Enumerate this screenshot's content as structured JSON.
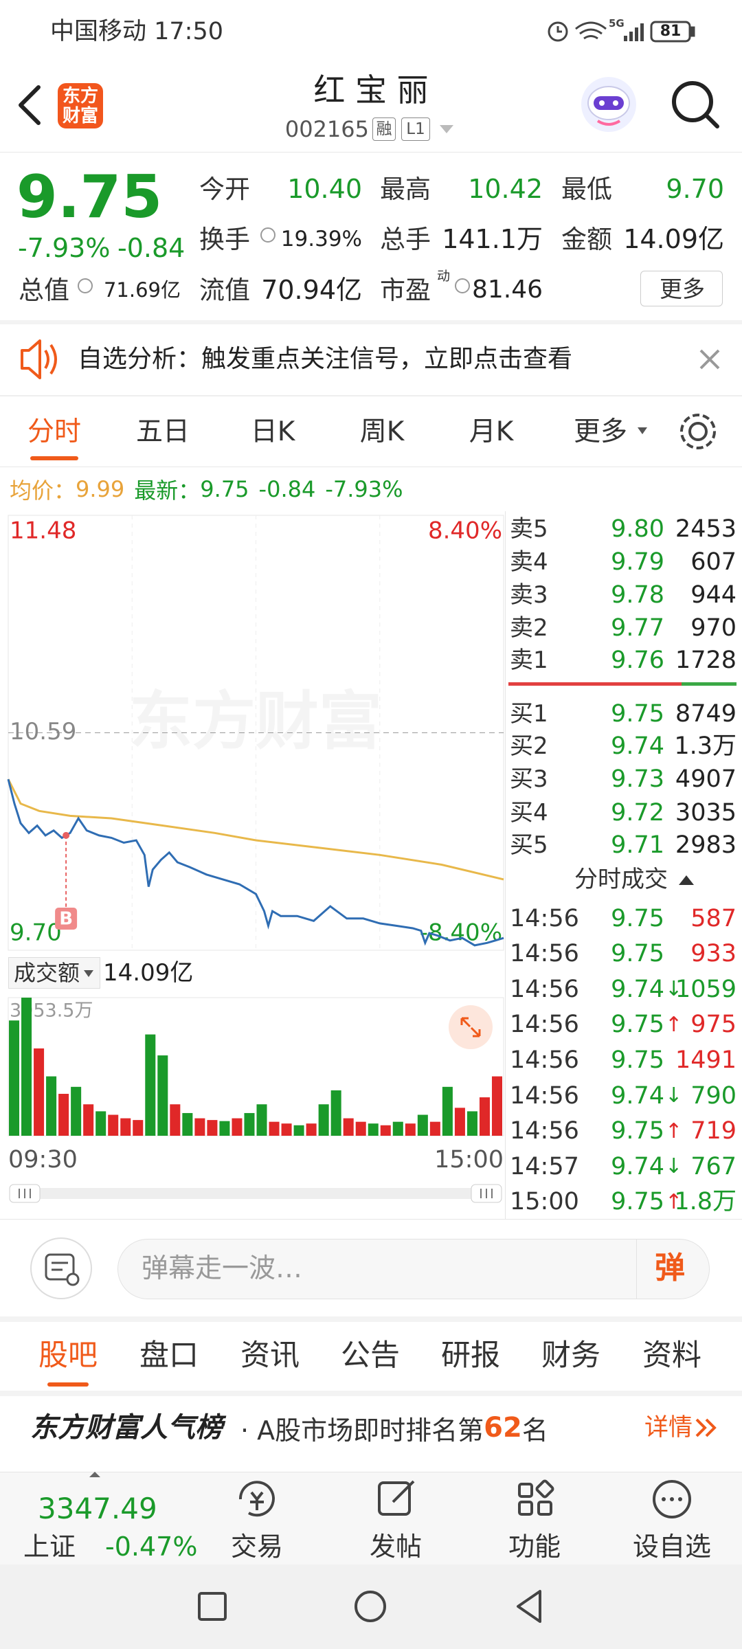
{
  "status_bar": {
    "carrier_time": "中国移动 17:50",
    "network": "5G",
    "battery": "81"
  },
  "header": {
    "logo": "东方财富",
    "title": "红 宝 丽",
    "code": "002165",
    "tags": [
      "融",
      "L1"
    ]
  },
  "quote": {
    "price": "9.75",
    "change_pct": "-7.93%",
    "change": "-0.84",
    "stats": [
      {
        "label": "今开",
        "value": "10.40"
      },
      {
        "label": "最高",
        "value": "10.42"
      },
      {
        "label": "最低",
        "value": "9.70"
      },
      {
        "label": "换手",
        "value": "19.39%"
      },
      {
        "label": "总手",
        "value": "141.1万"
      },
      {
        "label": "金额",
        "value": "14.09亿"
      },
      {
        "label": "总值",
        "value": "71.69亿"
      },
      {
        "label": "流值",
        "value": "70.94亿"
      },
      {
        "label": "市盈",
        "note": "动",
        "value": "81.46"
      }
    ],
    "more_button": "更多"
  },
  "notice": {
    "text": "自选分析：触发重点关注信号，立即点击查看"
  },
  "chart_tabs": [
    "分时",
    "五日",
    "日K",
    "周K",
    "月K",
    "更多"
  ],
  "summary": {
    "avg_label": "均价：",
    "avg": "9.99",
    "latest_label": "最新：",
    "latest": "9.75",
    "change": "-0.84",
    "change_pct": "-7.93%"
  },
  "chart_data": [
    {
      "type": "line",
      "watermark": "东方财富",
      "xlim": [
        0,
        240
      ],
      "xticks": [
        {
          "value": 0,
          "label": "09:30"
        },
        {
          "value": 240,
          "label": "15:00"
        }
      ],
      "ylim": [
        9.7,
        11.48
      ],
      "yticks": [
        11.48,
        10.59,
        {
          "value": 9.7,
          "label": "9.70"
        }
      ],
      "y2lim": [
        -8.4,
        8.4
      ],
      "y2ticks": [
        {
          "value": 8.4,
          "label": "8.40%"
        },
        {
          "value": -8.4,
          "label": "-8.40%"
        }
      ],
      "series": [
        {
          "color": "#e8b84a",
          "x": [
            0,
            6,
            15,
            30,
            50,
            75,
            100,
            120,
            150,
            180,
            210,
            240
          ],
          "values": [
            10.4,
            10.3,
            10.27,
            10.25,
            10.24,
            10.21,
            10.18,
            10.15,
            10.12,
            10.09,
            10.05,
            9.99
          ]
        },
        {
          "color": "#2f6db3",
          "x": [
            0,
            3,
            6,
            10,
            14,
            18,
            22,
            26,
            30,
            34,
            38,
            44,
            50,
            56,
            62,
            66,
            68,
            70,
            74,
            78,
            82,
            88,
            96,
            104,
            112,
            120,
            124,
            126,
            128,
            132,
            140,
            148,
            156,
            164,
            172,
            180,
            188,
            196,
            200,
            202,
            204,
            208,
            214,
            220,
            226,
            232,
            236,
            240
          ],
          "values": [
            10.4,
            10.3,
            10.22,
            10.18,
            10.21,
            10.17,
            10.19,
            10.16,
            10.18,
            10.24,
            10.19,
            10.17,
            10.16,
            10.14,
            10.15,
            10.09,
            9.96,
            10.03,
            10.07,
            10.1,
            10.06,
            10.04,
            10.01,
            9.99,
            9.97,
            9.93,
            9.86,
            9.8,
            9.86,
            9.84,
            9.84,
            9.82,
            9.88,
            9.83,
            9.83,
            9.81,
            9.8,
            9.79,
            9.78,
            9.73,
            9.77,
            9.76,
            9.74,
            9.75,
            9.72,
            9.73,
            9.74,
            9.75
          ]
        }
      ],
      "annotations": [
        {
          "text": "B",
          "x": 28,
          "y": 10.17
        }
      ]
    },
    {
      "type": "bar",
      "xlim": [
        0,
        240
      ],
      "ylim": [
        0,
        3953.5
      ],
      "yticks": [
        {
          "value": 3953.5,
          "label": "3953.5万"
        }
      ],
      "x": [
        0,
        6,
        12,
        18,
        24,
        30,
        36,
        42,
        48,
        54,
        60,
        66,
        72,
        78,
        84,
        90,
        96,
        102,
        108,
        114,
        120,
        126,
        132,
        138,
        144,
        150,
        156,
        162,
        168,
        174,
        180,
        186,
        192,
        198,
        204,
        210,
        216,
        222,
        228,
        234
      ],
      "values": [
        3300,
        3953.5,
        2500,
        1700,
        1200,
        1400,
        900,
        700,
        600,
        500,
        450,
        2900,
        2300,
        900,
        650,
        500,
        450,
        420,
        500,
        650,
        900,
        400,
        350,
        300,
        350,
        900,
        1300,
        500,
        400,
        350,
        300,
        400,
        350,
        600,
        400,
        1400,
        800,
        700,
        1100,
        1700
      ],
      "colors": [
        "#1a9a2a",
        "#1a9a2a",
        "#e02828",
        "#1a9a2a",
        "#e02828",
        "#1a9a2a",
        "#e02828",
        "#1a9a2a",
        "#e02828",
        "#e02828",
        "#e02828",
        "#1a9a2a",
        "#1a9a2a",
        "#e02828",
        "#1a9a2a",
        "#e02828",
        "#e02828",
        "#1a9a2a",
        "#e02828",
        "#1a9a2a",
        "#1a9a2a",
        "#e02828",
        "#e02828",
        "#1a9a2a",
        "#e02828",
        "#1a9a2a",
        "#1a9a2a",
        "#e02828",
        "#e02828",
        "#1a9a2a",
        "#e02828",
        "#1a9a2a",
        "#e02828",
        "#1a9a2a",
        "#e02828",
        "#1a9a2a",
        "#e02828",
        "#1a9a2a",
        "#e02828",
        "#e02828"
      ]
    }
  ],
  "volume_selector": {
    "label": "成交额",
    "value": "14.09亿"
  },
  "order_book": {
    "asks": [
      {
        "label": "卖5",
        "price": "9.80",
        "volume": "2453"
      },
      {
        "label": "卖4",
        "price": "9.79",
        "volume": "607"
      },
      {
        "label": "卖3",
        "price": "9.78",
        "volume": "944"
      },
      {
        "label": "卖2",
        "price": "9.77",
        "volume": "970"
      },
      {
        "label": "卖1",
        "price": "9.76",
        "volume": "1728"
      }
    ],
    "bids": [
      {
        "label": "买1",
        "price": "9.75",
        "volume": "8749"
      },
      {
        "label": "买2",
        "price": "9.74",
        "volume": "1.3万"
      },
      {
        "label": "买3",
        "price": "9.73",
        "volume": "4907"
      },
      {
        "label": "买4",
        "price": "9.72",
        "volume": "3035"
      },
      {
        "label": "买5",
        "price": "9.71",
        "volume": "2983"
      }
    ]
  },
  "trades": {
    "title": "分时成交",
    "rows": [
      {
        "time": "14:56",
        "price": "9.75",
        "volume": "587",
        "color": "#e02828"
      },
      {
        "time": "14:56",
        "price": "9.75",
        "volume": "933",
        "color": "#e02828"
      },
      {
        "time": "14:56",
        "price": "9.74",
        "arrow": "↓",
        "volume": "1059",
        "color": "#1a9a2a"
      },
      {
        "time": "14:56",
        "price": "9.75",
        "arrow": "↑",
        "volume": "975",
        "color": "#e02828"
      },
      {
        "time": "14:56",
        "price": "9.75",
        "volume": "1491",
        "color": "#e02828"
      },
      {
        "time": "14:56",
        "price": "9.74",
        "arrow": "↓",
        "volume": "790",
        "color": "#1a9a2a"
      },
      {
        "time": "14:56",
        "price": "9.75",
        "arrow": "↑",
        "volume": "719",
        "color": "#e02828"
      },
      {
        "time": "14:57",
        "price": "9.74",
        "arrow": "↓",
        "volume": "767",
        "color": "#1a9a2a"
      },
      {
        "time": "15:00",
        "price": "9.75",
        "arrow": "↑",
        "volume": "1.8万",
        "color": "#1a9a2a"
      }
    ]
  },
  "comment_bar": {
    "placeholder": "弹幕走一波…",
    "send": "弹"
  },
  "section_tabs": [
    "股吧",
    "盘口",
    "资讯",
    "公告",
    "研报",
    "财务",
    "资料"
  ],
  "ranking": {
    "brand": "东方财富人气榜",
    "text": "· A股市场即时排名第",
    "rank": "62",
    "suffix": "名",
    "link": "详情"
  },
  "index": {
    "value": "3347.49",
    "name": "上证",
    "change": "-0.47%"
  },
  "bottom_nav": [
    "交易",
    "发帖",
    "功能",
    "设自选"
  ]
}
